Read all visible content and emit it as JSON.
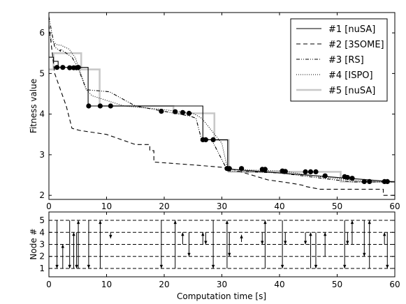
{
  "chart_data": [
    {
      "type": "line",
      "ylabel": "Fitness value",
      "xlim": [
        0,
        60
      ],
      "ylim": [
        1.9,
        6.5
      ],
      "xticks": [
        0,
        10,
        20,
        30,
        40,
        50,
        60
      ],
      "yticks": [
        2,
        3,
        4,
        5,
        6
      ],
      "legend_position": "top-right",
      "series": [
        {
          "name": "#1 [nuSA]",
          "style": "solid",
          "color": "#000000",
          "x": [
            0,
            0.8,
            0.8,
            1.6,
            1.6,
            6.8,
            6.8,
            26.7,
            26.7,
            31,
            31,
            60
          ],
          "y": [
            5.4,
            5.4,
            5.3,
            5.3,
            5.15,
            5.15,
            4.2,
            4.2,
            3.37,
            3.37,
            2.65,
            2.33
          ]
        },
        {
          "name": "#2 [3SOME]",
          "style": "dashed",
          "color": "#000000",
          "x": [
            0,
            0.5,
            1,
            2,
            3,
            4,
            5.3,
            10,
            15,
            17.5,
            17.5,
            18.2,
            18.2,
            25,
            31,
            34,
            38,
            42,
            44,
            44.5,
            47,
            54,
            58,
            58,
            60
          ],
          "y": [
            6.2,
            5.6,
            5.0,
            4.6,
            4.2,
            3.65,
            3.6,
            3.5,
            3.25,
            3.25,
            3.1,
            3.1,
            2.82,
            2.75,
            2.68,
            2.55,
            2.38,
            2.3,
            2.25,
            2.22,
            2.15,
            2.15,
            2.15,
            2.0,
            2.0
          ]
        },
        {
          "name": "#3 [RS]",
          "style": "dashdot",
          "color": "#000000",
          "x": [
            0,
            0.5,
            1,
            2,
            2,
            4,
            5,
            6.5,
            10.5,
            15,
            24.5,
            25.5,
            26.5,
            28.2,
            31,
            40,
            52.5,
            60
          ],
          "y": [
            6.4,
            6.0,
            5.65,
            5.55,
            5.6,
            5.4,
            5.15,
            4.6,
            4.55,
            4.2,
            3.95,
            3.9,
            3.36,
            3.38,
            2.6,
            2.55,
            2.33,
            2.33
          ]
        },
        {
          "name": "#4 [ISPO]",
          "style": "dotted",
          "color": "#000000",
          "x": [
            0,
            0.5,
            1.5,
            2,
            3.5,
            4.6,
            6.5,
            7.5,
            13,
            19.5,
            25,
            26.5,
            30,
            31,
            40.5,
            47.5,
            55.6,
            60
          ],
          "y": [
            6.0,
            5.8,
            5.7,
            5.7,
            5.6,
            5.38,
            4.6,
            4.45,
            4.2,
            4.12,
            4.02,
            3.9,
            3.28,
            2.64,
            2.6,
            2.45,
            2.33,
            2.33
          ]
        },
        {
          "name": "#5 [nuSA]",
          "style": "solid-thick",
          "color": "#c8c8c8",
          "x": [
            0,
            0.8,
            0.8,
            5.6,
            5.6,
            8.8,
            8.8,
            21.6,
            21.6,
            28.7,
            28.7,
            31.2,
            31.2,
            50.6,
            50.6,
            60
          ],
          "y": [
            5.1,
            5.1,
            5.5,
            5.5,
            5.1,
            5.1,
            4.2,
            4.2,
            4.02,
            4.02,
            3.36,
            3.36,
            2.58,
            2.58,
            2.34,
            2.34
          ]
        }
      ],
      "markers": {
        "x": [
          1.4,
          2.4,
          3.6,
          4.3,
          4.8,
          5.1,
          6.9,
          8.9,
          10.7,
          19.5,
          21.9,
          23.2,
          24.3,
          26.7,
          27.2,
          28.5,
          30.9,
          31.3,
          33.4,
          37.0,
          37.5,
          40.5,
          41.0,
          44.5,
          45.4,
          46.3,
          47.9,
          51.3,
          51.8,
          52.6,
          54.7,
          55.6,
          58.2,
          58.7
        ],
        "y": [
          5.15,
          5.15,
          5.14,
          5.14,
          5.14,
          5.15,
          4.2,
          4.2,
          4.2,
          4.07,
          4.06,
          4.04,
          4.02,
          3.37,
          3.37,
          3.37,
          2.66,
          2.66,
          2.66,
          2.64,
          2.64,
          2.6,
          2.59,
          2.58,
          2.58,
          2.58,
          2.48,
          2.46,
          2.44,
          2.42,
          2.34,
          2.34,
          2.34,
          2.34
        ]
      }
    },
    {
      "type": "line",
      "xlabel": "Computation time [s]",
      "ylabel": "Node #",
      "xlim": [
        0,
        60
      ],
      "ylim": [
        0.3,
        5.7
      ],
      "xticks": [
        0,
        10,
        20,
        30,
        40,
        50,
        60
      ],
      "yticks": [
        1,
        2,
        3,
        4,
        5
      ],
      "hlines": [
        1,
        2,
        3,
        4,
        5
      ],
      "arrows": [
        {
          "x": 1.4,
          "y1": 5,
          "y2": 1
        },
        {
          "x": 2.4,
          "y1": 1,
          "y2": 3
        },
        {
          "x": 3.6,
          "y1": 5,
          "y2": 1
        },
        {
          "x": 4.3,
          "y1": 1,
          "y2": 4
        },
        {
          "x": 4.8,
          "y1": 4,
          "y2": 1
        },
        {
          "x": 5.1,
          "y1": 1,
          "y2": 5
        },
        {
          "x": 6.9,
          "y1": 5,
          "y2": 1
        },
        {
          "x": 8.9,
          "y1": 1,
          "y2": 5
        },
        {
          "x": 10.7,
          "y1": 4,
          "y2": 3.5
        },
        {
          "x": 19.5,
          "y1": 5,
          "y2": 1
        },
        {
          "x": 21.9,
          "y1": 1,
          "y2": 5
        },
        {
          "x": 23.2,
          "y1": 3,
          "y2": 4
        },
        {
          "x": 24.3,
          "y1": 4,
          "y2": 2
        },
        {
          "x": 26.7,
          "y1": 3,
          "y2": 4
        },
        {
          "x": 27.2,
          "y1": 4,
          "y2": 3
        },
        {
          "x": 28.5,
          "y1": 5,
          "y2": 1
        },
        {
          "x": 30.9,
          "y1": 1,
          "y2": 5
        },
        {
          "x": 31.3,
          "y1": 4,
          "y2": 2
        },
        {
          "x": 33.4,
          "y1": 3.2,
          "y2": 3.8
        },
        {
          "x": 37.0,
          "y1": 4,
          "y2": 3
        },
        {
          "x": 37.5,
          "y1": 1,
          "y2": 5
        },
        {
          "x": 40.5,
          "y1": 5,
          "y2": 1
        },
        {
          "x": 41.0,
          "y1": 4,
          "y2": 3
        },
        {
          "x": 44.5,
          "y1": 4,
          "y2": 3
        },
        {
          "x": 45.4,
          "y1": 1,
          "y2": 4
        },
        {
          "x": 46.3,
          "y1": 4,
          "y2": 1
        },
        {
          "x": 47.9,
          "y1": 2,
          "y2": 4
        },
        {
          "x": 51.3,
          "y1": 5,
          "y2": 1
        },
        {
          "x": 51.8,
          "y1": 4,
          "y2": 3
        },
        {
          "x": 52.6,
          "y1": 3,
          "y2": 5
        },
        {
          "x": 54.7,
          "y1": 5,
          "y2": 2
        },
        {
          "x": 55.6,
          "y1": 1,
          "y2": 5
        },
        {
          "x": 58.2,
          "y1": 3,
          "y2": 4
        },
        {
          "x": 58.7,
          "y1": 4,
          "y2": 1
        }
      ]
    }
  ]
}
